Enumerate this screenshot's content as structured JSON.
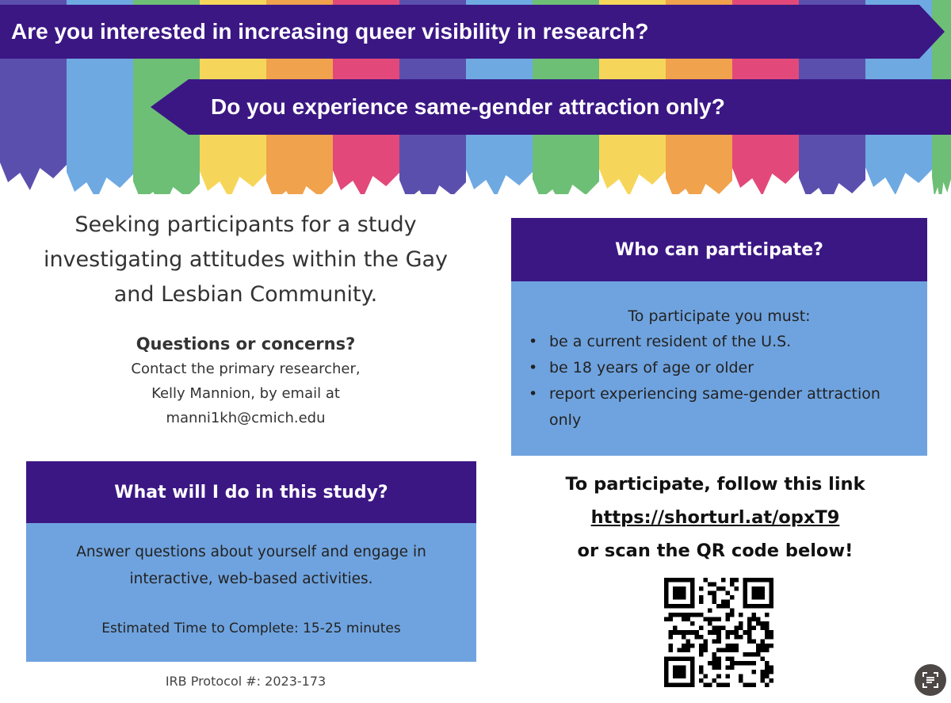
{
  "stripe_colors": [
    "#5b4fae",
    "#6ea9e2",
    "#6dbf76",
    "#f6d65a",
    "#f0a24c",
    "#e2497a"
  ],
  "colors": {
    "purple": "#3b1784",
    "box_blue": "#6fa3df"
  },
  "banners": {
    "top": "Are you interested in increasing queer visibility in research?",
    "second": "Do you experience same-gender attraction only?"
  },
  "intro": "Seeking participants for a study investigating attitudes within the Gay and Lesbian Community.",
  "questions": {
    "heading": "Questions or concerns?",
    "line1": "Contact the primary researcher,",
    "line2": "Kelly Mannion, by email at",
    "email": "manni1kh@cmich.edu"
  },
  "study": {
    "heading": "What will I do in this study?",
    "body": "Answer questions about yourself and engage in interactive, web-based activities.",
    "time": "Estimated Time to Complete: 15-25 minutes"
  },
  "eligibility": {
    "heading": "Who can participate?",
    "lead": "To participate you must:",
    "items": [
      "be a current resident of the U.S.",
      "be 18 years of age or older",
      "report experiencing same-gender attraction only"
    ]
  },
  "cta": {
    "line1": "To participate, follow this link",
    "link": "https://shorturl.at/opxT9",
    "line2": "or scan the QR code below!"
  },
  "irb": "IRB Protocol #: 2023-173",
  "icons": {
    "qr": "qr-code",
    "scan": "scan-text-icon"
  }
}
